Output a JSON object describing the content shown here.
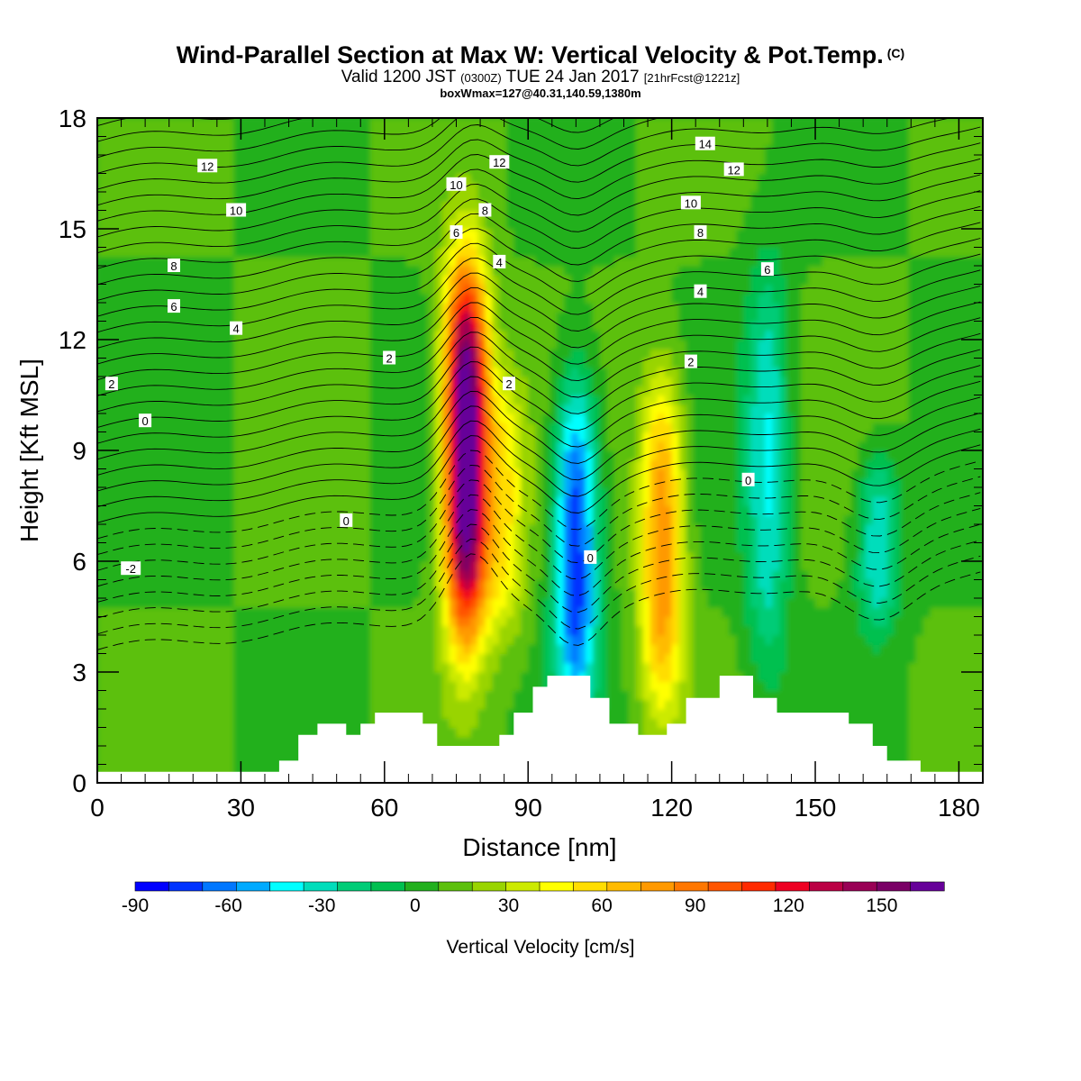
{
  "title": {
    "main": "Wind-Parallel Section at Max W: Vertical Velocity & Pot.Temp.",
    "main_suffix": "(C)",
    "valid_prefix": "Valid 1200 JST",
    "valid_z": "(0300Z)",
    "valid_date": "TUE 24 Jan 2017",
    "fcst": "[21hrFcst@1221z]",
    "box": "boxWmax=127@40.31,140.59,1380m"
  },
  "chart_data": {
    "type": "heatmap",
    "xlabel": "Distance [nm]",
    "ylabel": "Height [Kft MSL]",
    "xlim": [
      0,
      185
    ],
    "ylim": [
      0,
      18
    ],
    "xticks": [
      0,
      30,
      60,
      90,
      120,
      150,
      180
    ],
    "yticks": [
      0,
      3,
      6,
      9,
      12,
      15,
      18
    ],
    "colorbar": {
      "label": "Vertical Velocity [cm/s]",
      "min": -90,
      "max": 170,
      "step": 10,
      "tick_values": [
        -90,
        -60,
        -30,
        0,
        30,
        60,
        90,
        120,
        150
      ],
      "colors": [
        "#0000ff",
        "#0033ff",
        "#0077ff",
        "#00aaff",
        "#00ffff",
        "#00ddbb",
        "#00cc77",
        "#00c050",
        "#22b01e",
        "#5cc00c",
        "#99d400",
        "#ccea00",
        "#ffff00",
        "#ffdd00",
        "#ffbb00",
        "#ff9900",
        "#ff7700",
        "#ff5500",
        "#ff2a00",
        "#ee0022",
        "#bb0044",
        "#990055",
        "#7a0066",
        "#660099"
      ]
    },
    "w_field": {
      "note_units": "cm/s",
      "features": [
        {
          "x": 77,
          "y_bottom": 4,
          "y_top": 14,
          "peak": 170
        },
        {
          "x": 118,
          "y_bottom": 2,
          "y_top": 11,
          "peak": 70
        },
        {
          "x": 85,
          "y_bottom": 4,
          "y_top": 11,
          "peak": 40
        },
        {
          "x": 100,
          "y_bottom": 2,
          "y_top": 11,
          "peak": -80
        },
        {
          "x": 140,
          "y_bottom": 3,
          "y_top": 14,
          "peak": -40
        },
        {
          "x": 163,
          "y_bottom": 4,
          "y_top": 9,
          "peak": -40
        }
      ]
    },
    "theta_contours": {
      "units": "C",
      "labels": [
        {
          "text": "12",
          "x": 23,
          "y": 16.7
        },
        {
          "text": "12",
          "x": 84,
          "y": 16.8
        },
        {
          "text": "12",
          "x": 133,
          "y": 16.6
        },
        {
          "text": "14",
          "x": 127,
          "y": 17.3
        },
        {
          "text": "10",
          "x": 29,
          "y": 15.5
        },
        {
          "text": "10",
          "x": 75,
          "y": 16.2
        },
        {
          "text": "10",
          "x": 124,
          "y": 15.7
        },
        {
          "text": "8",
          "x": 16,
          "y": 14.0
        },
        {
          "text": "8",
          "x": 81,
          "y": 15.5
        },
        {
          "text": "8",
          "x": 126,
          "y": 14.9
        },
        {
          "text": "6",
          "x": 16,
          "y": 12.9
        },
        {
          "text": "6",
          "x": 75,
          "y": 14.9
        },
        {
          "text": "6",
          "x": 140,
          "y": 13.9
        },
        {
          "text": "4",
          "x": 29,
          "y": 12.3
        },
        {
          "text": "4",
          "x": 84,
          "y": 14.1
        },
        {
          "text": "4",
          "x": 126,
          "y": 13.3
        },
        {
          "text": "2",
          "x": 3,
          "y": 10.8
        },
        {
          "text": "2",
          "x": 61,
          "y": 11.5
        },
        {
          "text": "2",
          "x": 86,
          "y": 10.8
        },
        {
          "text": "2",
          "x": 124,
          "y": 11.4
        },
        {
          "text": "0",
          "x": 10,
          "y": 9.8
        },
        {
          "text": "0",
          "x": 52,
          "y": 7.1
        },
        {
          "text": "0",
          "x": 103,
          "y": 6.1
        },
        {
          "text": "0",
          "x": 136,
          "y": 8.2
        },
        {
          "text": "-2",
          "x": 7,
          "y": 5.8
        }
      ]
    },
    "terrain_kft": [
      {
        "x": 0,
        "h": 0.3
      },
      {
        "x": 38,
        "h": 0.3
      },
      {
        "x": 38,
        "h": 0.6
      },
      {
        "x": 42,
        "h": 0.6
      },
      {
        "x": 42,
        "h": 1.3
      },
      {
        "x": 46,
        "h": 1.3
      },
      {
        "x": 46,
        "h": 1.6
      },
      {
        "x": 52,
        "h": 1.6
      },
      {
        "x": 52,
        "h": 1.3
      },
      {
        "x": 55,
        "h": 1.3
      },
      {
        "x": 55,
        "h": 1.6
      },
      {
        "x": 58,
        "h": 1.6
      },
      {
        "x": 58,
        "h": 1.9
      },
      {
        "x": 68,
        "h": 1.9
      },
      {
        "x": 68,
        "h": 1.6
      },
      {
        "x": 71,
        "h": 1.6
      },
      {
        "x": 71,
        "h": 1.0
      },
      {
        "x": 84,
        "h": 1.0
      },
      {
        "x": 84,
        "h": 1.3
      },
      {
        "x": 87,
        "h": 1.3
      },
      {
        "x": 87,
        "h": 1.9
      },
      {
        "x": 91,
        "h": 1.9
      },
      {
        "x": 91,
        "h": 2.6
      },
      {
        "x": 94,
        "h": 2.6
      },
      {
        "x": 94,
        "h": 2.9
      },
      {
        "x": 103,
        "h": 2.9
      },
      {
        "x": 103,
        "h": 2.3
      },
      {
        "x": 107,
        "h": 2.3
      },
      {
        "x": 107,
        "h": 1.6
      },
      {
        "x": 113,
        "h": 1.6
      },
      {
        "x": 113,
        "h": 1.3
      },
      {
        "x": 119,
        "h": 1.3
      },
      {
        "x": 119,
        "h": 1.6
      },
      {
        "x": 123,
        "h": 1.6
      },
      {
        "x": 123,
        "h": 2.3
      },
      {
        "x": 130,
        "h": 2.3
      },
      {
        "x": 130,
        "h": 2.9
      },
      {
        "x": 137,
        "h": 2.9
      },
      {
        "x": 137,
        "h": 2.3
      },
      {
        "x": 142,
        "h": 2.3
      },
      {
        "x": 142,
        "h": 1.9
      },
      {
        "x": 157,
        "h": 1.9
      },
      {
        "x": 157,
        "h": 1.6
      },
      {
        "x": 162,
        "h": 1.6
      },
      {
        "x": 162,
        "h": 1.0
      },
      {
        "x": 165,
        "h": 1.0
      },
      {
        "x": 165,
        "h": 0.6
      },
      {
        "x": 172,
        "h": 0.6
      },
      {
        "x": 172,
        "h": 0.3
      },
      {
        "x": 185,
        "h": 0.3
      }
    ]
  }
}
